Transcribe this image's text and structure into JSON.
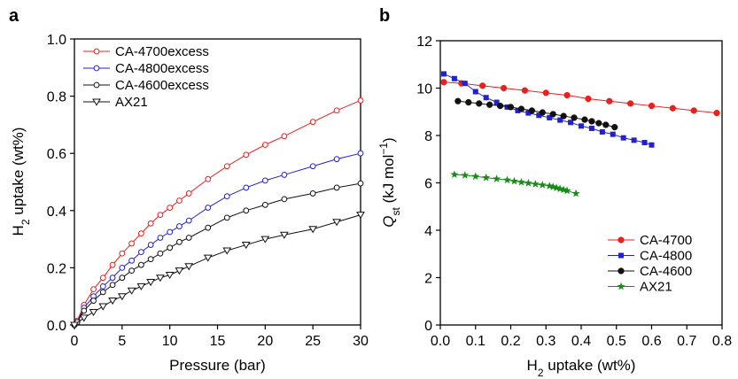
{
  "chart_data": [
    {
      "panel_label": "a",
      "type": "line",
      "xlabel": "Pressure (bar)",
      "ylabel": {
        "prefix": "H",
        "sub": "2",
        "suffix": " uptake (wt%)"
      },
      "xlim": [
        0,
        30
      ],
      "ylim": [
        0,
        1.0
      ],
      "xticks": [
        0,
        5,
        10,
        15,
        20,
        25,
        30
      ],
      "yticks": [
        0.0,
        0.2,
        0.4,
        0.6,
        0.8,
        1.0
      ],
      "ytick_labels": [
        "0.0",
        "0.2",
        "0.4",
        "0.6",
        "0.8",
        "1.0"
      ],
      "grid": false,
      "legend_position": "top-left",
      "series": [
        {
          "name": "CA-4700excess",
          "color": "#e8201e",
          "marker": "open-circle",
          "x": [
            0,
            0.3,
            1,
            2,
            3,
            4,
            5,
            6,
            7,
            8,
            9,
            10,
            11,
            12,
            14,
            16,
            18,
            20,
            22,
            25,
            27.5,
            30
          ],
          "y": [
            0,
            0.015,
            0.07,
            0.125,
            0.165,
            0.21,
            0.25,
            0.285,
            0.32,
            0.355,
            0.385,
            0.41,
            0.435,
            0.46,
            0.51,
            0.555,
            0.595,
            0.63,
            0.66,
            0.71,
            0.75,
            0.785
          ]
        },
        {
          "name": "CA-4800excess",
          "color": "#2222cc",
          "marker": "open-circle",
          "x": [
            0,
            0.3,
            1,
            2,
            3,
            4,
            5,
            6,
            7,
            8,
            9,
            10,
            11,
            12,
            14,
            16,
            18,
            20,
            22,
            25,
            27.5,
            30
          ],
          "y": [
            0,
            0.01,
            0.06,
            0.1,
            0.135,
            0.165,
            0.2,
            0.225,
            0.255,
            0.28,
            0.305,
            0.325,
            0.345,
            0.365,
            0.41,
            0.45,
            0.48,
            0.505,
            0.525,
            0.555,
            0.58,
            0.6
          ]
        },
        {
          "name": "CA-4600excess",
          "color": "#111111",
          "marker": "open-circle",
          "x": [
            0,
            0.3,
            1,
            2,
            3,
            4,
            5,
            6,
            7,
            8,
            9,
            10,
            11,
            12,
            14,
            16,
            18,
            20,
            22,
            25,
            27.5,
            30
          ],
          "y": [
            0,
            0.01,
            0.05,
            0.085,
            0.115,
            0.14,
            0.165,
            0.19,
            0.21,
            0.23,
            0.25,
            0.27,
            0.29,
            0.305,
            0.34,
            0.375,
            0.4,
            0.42,
            0.44,
            0.46,
            0.48,
            0.495
          ]
        },
        {
          "name": "AX21",
          "color": "#111111",
          "marker": "open-triangle-down",
          "x": [
            0,
            1,
            2,
            3,
            4,
            5,
            6,
            7,
            8,
            9,
            10,
            11,
            12,
            14,
            16,
            18,
            20,
            22,
            25,
            27.5,
            30
          ],
          "y": [
            0,
            0.025,
            0.045,
            0.065,
            0.085,
            0.1,
            0.12,
            0.135,
            0.15,
            0.165,
            0.175,
            0.19,
            0.205,
            0.235,
            0.26,
            0.28,
            0.3,
            0.315,
            0.335,
            0.36,
            0.385
          ]
        }
      ]
    },
    {
      "panel_label": "b",
      "type": "line",
      "xlabel": {
        "prefix": "H",
        "sub": "2",
        "suffix": " uptake (wt%)"
      },
      "ylabel": {
        "italic": "Q",
        "sub": "st",
        "rest": " (kJ mol",
        "sup": "−1",
        "close": ")"
      },
      "xlim": [
        0,
        0.8
      ],
      "ylim": [
        0,
        12
      ],
      "xticks": [
        0.0,
        0.1,
        0.2,
        0.3,
        0.4,
        0.5,
        0.6,
        0.7,
        0.8
      ],
      "xtick_labels": [
        "0.0",
        "0.1",
        "0.2",
        "0.3",
        "0.4",
        "0.5",
        "0.6",
        "0.7",
        "0.8"
      ],
      "yticks": [
        0,
        2,
        4,
        6,
        8,
        10,
        12
      ],
      "grid": false,
      "legend_position": "bottom-right",
      "series": [
        {
          "name": "CA-4700",
          "color": "#e8201e",
          "marker": "filled-circle",
          "x": [
            0.01,
            0.06,
            0.12,
            0.18,
            0.24,
            0.3,
            0.36,
            0.42,
            0.48,
            0.54,
            0.6,
            0.66,
            0.72,
            0.785
          ],
          "y": [
            10.25,
            10.2,
            10.1,
            10.0,
            9.9,
            9.8,
            9.7,
            9.55,
            9.45,
            9.35,
            9.25,
            9.15,
            9.05,
            8.95
          ]
        },
        {
          "name": "CA-4800",
          "color": "#2222cc",
          "marker": "filled-square",
          "x": [
            0.01,
            0.04,
            0.07,
            0.1,
            0.13,
            0.16,
            0.19,
            0.22,
            0.25,
            0.28,
            0.31,
            0.34,
            0.37,
            0.4,
            0.43,
            0.46,
            0.49,
            0.52,
            0.55,
            0.58,
            0.6
          ],
          "y": [
            10.6,
            10.4,
            10.2,
            9.85,
            9.6,
            9.4,
            9.2,
            9.05,
            8.95,
            8.85,
            8.75,
            8.65,
            8.55,
            8.4,
            8.3,
            8.15,
            8.05,
            7.9,
            7.8,
            7.7,
            7.6
          ]
        },
        {
          "name": "CA-4600",
          "color": "#111111",
          "marker": "filled-circle",
          "x": [
            0.05,
            0.08,
            0.11,
            0.14,
            0.17,
            0.2,
            0.23,
            0.26,
            0.29,
            0.32,
            0.35,
            0.38,
            0.41,
            0.43,
            0.45,
            0.47,
            0.495
          ],
          "y": [
            9.45,
            9.4,
            9.35,
            9.3,
            9.25,
            9.2,
            9.12,
            9.05,
            8.97,
            8.9,
            8.82,
            8.75,
            8.67,
            8.6,
            8.52,
            8.45,
            8.35
          ]
        },
        {
          "name": "AX21",
          "color": "#1a8a1a",
          "marker": "filled-star",
          "x": [
            0.04,
            0.07,
            0.1,
            0.13,
            0.16,
            0.19,
            0.21,
            0.23,
            0.25,
            0.27,
            0.29,
            0.31,
            0.32,
            0.33,
            0.34,
            0.35,
            0.36,
            0.385
          ],
          "y": [
            6.35,
            6.32,
            6.27,
            6.22,
            6.17,
            6.12,
            6.07,
            6.03,
            5.99,
            5.95,
            5.91,
            5.87,
            5.83,
            5.79,
            5.75,
            5.71,
            5.67,
            5.55
          ]
        }
      ]
    }
  ]
}
